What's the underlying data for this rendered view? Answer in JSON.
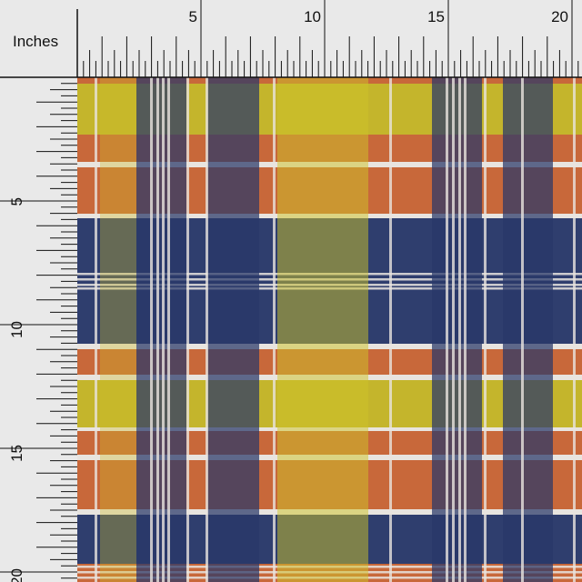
{
  "ruler": {
    "unit": "Inches",
    "top_labels": [
      "5",
      "10",
      "15",
      "20"
    ],
    "left_labels": [
      "5",
      "10",
      "15",
      "20"
    ]
  }
}
